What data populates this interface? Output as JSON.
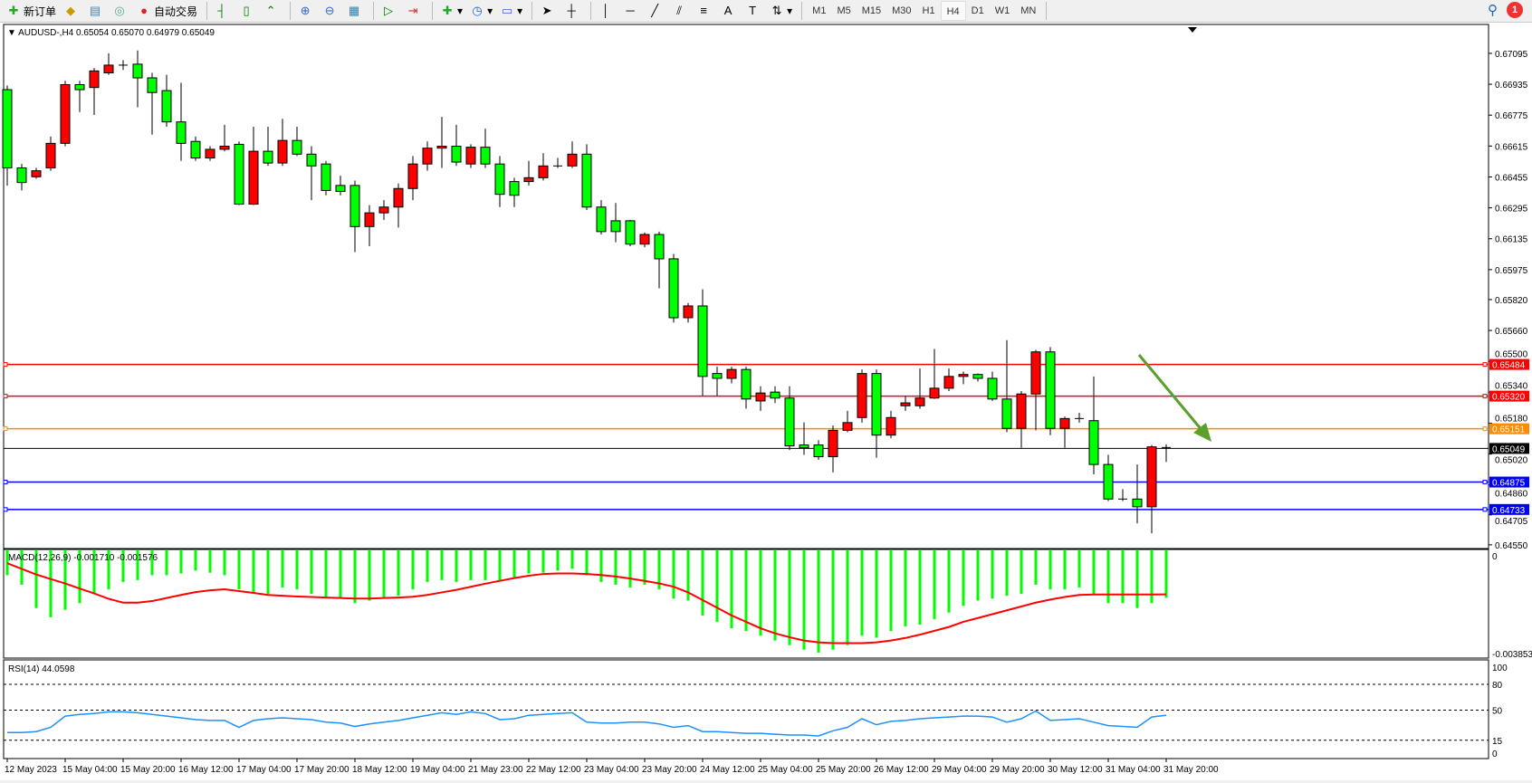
{
  "toolbar": {
    "new_order": "新订单",
    "auto_trading": "自动交易",
    "timeframes": [
      "M1",
      "M5",
      "M15",
      "M30",
      "H1",
      "H4",
      "D1",
      "W1",
      "MN"
    ],
    "active_timeframe": "H4",
    "notification_count": "1"
  },
  "header": {
    "symbol": "AUDUSD-,H4",
    "ohlc": "0.65054 0.65070 0.64979 0.65049"
  },
  "colors": {
    "bull": "#ff0000",
    "bear": "#00ff00",
    "macd_hist": "#00ff00",
    "macd_signal": "#ff0000",
    "rsi": "#1e90ff",
    "arrow": "#5aa02c"
  },
  "levels": [
    {
      "price": "0.65484",
      "color": "#ff0000"
    },
    {
      "price": "0.65320",
      "color": "#ff0000"
    },
    {
      "price": "0.65151",
      "color": "#ff8c00"
    },
    {
      "price": "0.65049",
      "color": "#000000"
    },
    {
      "price": "0.64875",
      "color": "#0000ff"
    },
    {
      "price": "0.64733",
      "color": "#0000ff"
    }
  ],
  "chart_data": [
    {
      "type": "candlestick",
      "title": "AUDUSD-,H4",
      "ylim": [
        0.6454,
        0.6724
      ],
      "y_ticks": [
        "0.67095",
        "0.66935",
        "0.66775",
        "0.66615",
        "0.66455",
        "0.66295",
        "0.66135",
        "0.65975",
        "0.65820",
        "0.65660",
        "0.65500",
        "0.65340",
        "0.65180",
        "0.65020",
        "0.64860",
        "0.64705",
        "0.64550"
      ],
      "x_ticks": [
        "12 May 2023",
        "15 May 04:00",
        "15 May 20:00",
        "16 May 12:00",
        "17 May 04:00",
        "17 May 20:00",
        "18 May 12:00",
        "19 May 04:00",
        "21 May 23:00",
        "22 May 12:00",
        "23 May 04:00",
        "23 May 20:00",
        "24 May 12:00",
        "25 May 04:00",
        "25 May 20:00",
        "26 May 12:00",
        "29 May 04:00",
        "29 May 20:00",
        "30 May 12:00",
        "31 May 04:00",
        "31 May 20:00"
      ],
      "ohlc": [
        [
          0.66907,
          0.66928,
          0.6641,
          0.66502
        ],
        [
          0.66502,
          0.66522,
          0.66385,
          0.66426
        ],
        [
          0.66456,
          0.66502,
          0.66446,
          0.66487
        ],
        [
          0.66502,
          0.66664,
          0.66487,
          0.66629
        ],
        [
          0.66629,
          0.66953,
          0.66614,
          0.66933
        ],
        [
          0.66933,
          0.66953,
          0.66791,
          0.66907
        ],
        [
          0.66918,
          0.67019,
          0.66776,
          0.67004
        ],
        [
          0.66994,
          0.67095,
          0.66984,
          0.67034
        ],
        [
          0.67034,
          0.6706,
          0.67009,
          0.67034
        ],
        [
          0.67039,
          0.6711,
          0.66816,
          0.66968
        ],
        [
          0.66968,
          0.66994,
          0.66674,
          0.66892
        ],
        [
          0.66902,
          0.66984,
          0.66715,
          0.6674
        ],
        [
          0.6674,
          0.66943,
          0.66538,
          0.66629
        ],
        [
          0.66639,
          0.66664,
          0.66538,
          0.66553
        ],
        [
          0.66553,
          0.66614,
          0.66538,
          0.66598
        ],
        [
          0.66598,
          0.66725,
          0.66588,
          0.66614
        ],
        [
          0.66624,
          0.66639,
          0.66309,
          0.66314
        ],
        [
          0.66314,
          0.66715,
          0.66309,
          0.66588
        ],
        [
          0.66588,
          0.66715,
          0.66512,
          0.66527
        ],
        [
          0.66527,
          0.66756,
          0.66512,
          0.66644
        ],
        [
          0.66644,
          0.66715,
          0.66563,
          0.66573
        ],
        [
          0.66573,
          0.66614,
          0.66335,
          0.66512
        ],
        [
          0.66522,
          0.66538,
          0.6636,
          0.66385
        ],
        [
          0.66411,
          0.66461,
          0.6636,
          0.6638
        ],
        [
          0.66411,
          0.66436,
          0.66066,
          0.66198
        ],
        [
          0.66198,
          0.66309,
          0.66096,
          0.66269
        ],
        [
          0.66269,
          0.66335,
          0.66233,
          0.66299
        ],
        [
          0.66299,
          0.66421,
          0.66193,
          0.66395
        ],
        [
          0.66395,
          0.66563,
          0.66335,
          0.66522
        ],
        [
          0.66522,
          0.66639,
          0.66487,
          0.66604
        ],
        [
          0.66604,
          0.66766,
          0.66502,
          0.66614
        ],
        [
          0.66614,
          0.66725,
          0.66512,
          0.66532
        ],
        [
          0.66522,
          0.66624,
          0.66502,
          0.66609
        ],
        [
          0.66609,
          0.66705,
          0.66502,
          0.66522
        ],
        [
          0.66522,
          0.66563,
          0.66299,
          0.66365
        ],
        [
          0.66431,
          0.66451,
          0.66299,
          0.6636
        ],
        [
          0.66431,
          0.66538,
          0.66411,
          0.66451
        ],
        [
          0.66451,
          0.66578,
          0.66436,
          0.66512
        ],
        [
          0.66512,
          0.66553,
          0.66502,
          0.66512
        ],
        [
          0.66512,
          0.66639,
          0.66502,
          0.66573
        ],
        [
          0.66573,
          0.66624,
          0.66284,
          0.66299
        ],
        [
          0.66299,
          0.66335,
          0.66157,
          0.66172
        ],
        [
          0.66228,
          0.6632,
          0.66117,
          0.66172
        ],
        [
          0.66228,
          0.66233,
          0.66096,
          0.66107
        ],
        [
          0.66107,
          0.66167,
          0.66091,
          0.66157
        ],
        [
          0.66157,
          0.66172,
          0.65878,
          0.66031
        ],
        [
          0.66031,
          0.66056,
          0.65701,
          0.65726
        ],
        [
          0.65726,
          0.65802,
          0.65701,
          0.65787
        ],
        [
          0.65787,
          0.65873,
          0.65321,
          0.65422
        ],
        [
          0.65437,
          0.65472,
          0.65321,
          0.65412
        ],
        [
          0.65412,
          0.65472,
          0.65386,
          0.65458
        ],
        [
          0.65458,
          0.65472,
          0.65255,
          0.65305
        ],
        [
          0.65295,
          0.65371,
          0.65244,
          0.65336
        ],
        [
          0.65341,
          0.65371,
          0.65285,
          0.6531
        ],
        [
          0.6531,
          0.65371,
          0.65041,
          0.65062
        ],
        [
          0.65067,
          0.65184,
          0.65016,
          0.65052
        ],
        [
          0.65067,
          0.65092,
          0.6499,
          0.65006
        ],
        [
          0.65006,
          0.65168,
          0.64925,
          0.65143
        ],
        [
          0.65143,
          0.65244,
          0.65133,
          0.65183
        ],
        [
          0.65209,
          0.65458,
          0.65183,
          0.65437
        ],
        [
          0.65437,
          0.65458,
          0.65001,
          0.65118
        ],
        [
          0.65118,
          0.65244,
          0.65102,
          0.65209
        ],
        [
          0.6527,
          0.65321,
          0.65244,
          0.65285
        ],
        [
          0.6527,
          0.65463,
          0.65255,
          0.6531
        ],
        [
          0.6531,
          0.65564,
          0.65305,
          0.65361
        ],
        [
          0.65361,
          0.65463,
          0.65346,
          0.65422
        ],
        [
          0.65422,
          0.65447,
          0.65382,
          0.65432
        ],
        [
          0.65432,
          0.65437,
          0.65396,
          0.65412
        ],
        [
          0.65412,
          0.65447,
          0.65295,
          0.65305
        ],
        [
          0.65305,
          0.6561,
          0.65133,
          0.65153
        ],
        [
          0.65153,
          0.65346,
          0.65052,
          0.65331
        ],
        [
          0.65331,
          0.65559,
          0.65143,
          0.65549
        ],
        [
          0.65549,
          0.65574,
          0.65118,
          0.65153
        ],
        [
          0.65153,
          0.65214,
          0.65052,
          0.65204
        ],
        [
          0.65204,
          0.65234,
          0.65183,
          0.65204
        ],
        [
          0.65193,
          0.65422,
          0.64915,
          0.64966
        ],
        [
          0.64966,
          0.65016,
          0.64777,
          0.64787
        ],
        [
          0.64787,
          0.64838,
          0.64777,
          0.64787
        ],
        [
          0.64787,
          0.64966,
          0.64661,
          0.64747
        ],
        [
          0.64747,
          0.65067,
          0.6461,
          0.65057
        ],
        [
          0.65054,
          0.6507,
          0.64979,
          0.65049
        ]
      ]
    },
    {
      "type": "bar+line",
      "title": "MACD(12,26,9) -0.001710 -0.001576",
      "ylim": [
        -0.003853,
        0
      ],
      "y_ticks": [
        "0",
        "-0.003853"
      ],
      "histogram": [
        -0.00083,
        -0.0012,
        -0.00211,
        -0.00247,
        -0.00218,
        -0.00192,
        -0.00156,
        -0.00138,
        -0.00109,
        -0.00102,
        -0.00083,
        -0.00083,
        -0.00076,
        -0.00065,
        -0.00073,
        -0.00083,
        -0.00138,
        -0.00156,
        -0.00156,
        -0.00131,
        -0.00138,
        -0.00156,
        -0.00167,
        -0.00174,
        -0.00192,
        -0.00182,
        -0.00174,
        -0.00163,
        -0.00138,
        -0.00109,
        -0.00102,
        -0.00109,
        -0.00102,
        -0.00102,
        -0.00102,
        -0.00091,
        -0.00076,
        -0.00073,
        -0.00065,
        -0.00058,
        -0.00083,
        -0.00109,
        -0.0012,
        -0.00131,
        -0.0012,
        -0.00138,
        -0.00174,
        -0.00182,
        -0.0024,
        -0.00265,
        -0.0029,
        -0.00301,
        -0.00319,
        -0.00338,
        -0.00356,
        -0.00374,
        -0.00385,
        -0.00374,
        -0.00356,
        -0.00319,
        -0.00327,
        -0.00301,
        -0.00283,
        -0.00276,
        -0.00254,
        -0.00229,
        -0.00203,
        -0.00182,
        -0.00174,
        -0.00163,
        -0.00156,
        -0.0012,
        -0.00138,
        -0.00138,
        -0.00131,
        -0.00156,
        -0.00192,
        -0.00192,
        -0.00211,
        -0.00192,
        -0.00171
      ],
      "signal": [
        -0.00036,
        -0.00058,
        -0.0008,
        -0.00098,
        -0.00115,
        -0.00135,
        -0.00154,
        -0.00175,
        -0.0019,
        -0.0019,
        -0.00184,
        -0.00172,
        -0.0016,
        -0.00149,
        -0.00142,
        -0.00138,
        -0.00145,
        -0.00152,
        -0.0016,
        -0.00163,
        -0.00166,
        -0.00168,
        -0.0017,
        -0.00172,
        -0.00174,
        -0.00174,
        -0.00172,
        -0.0017,
        -0.00167,
        -0.0016,
        -0.0015,
        -0.0014,
        -0.00128,
        -0.00116,
        -0.00105,
        -0.00094,
        -0.00085,
        -0.00078,
        -0.00076,
        -0.00076,
        -0.00078,
        -0.00082,
        -0.00088,
        -0.00096,
        -0.00105,
        -0.00115,
        -0.00128,
        -0.0015,
        -0.0018,
        -0.0021,
        -0.0024,
        -0.00265,
        -0.0029,
        -0.0031,
        -0.00325,
        -0.00338,
        -0.00345,
        -0.00348,
        -0.00348,
        -0.00348,
        -0.00345,
        -0.00338,
        -0.00328,
        -0.00315,
        -0.003,
        -0.00285,
        -0.00265,
        -0.0025,
        -0.00235,
        -0.0022,
        -0.00205,
        -0.0019,
        -0.00178,
        -0.00168,
        -0.0016,
        -0.00158,
        -0.00158,
        -0.00158,
        -0.00158,
        -0.00158,
        -0.001576
      ]
    },
    {
      "type": "line",
      "title": "RSI(14) 44.0598",
      "ylim": [
        0,
        100
      ],
      "y_ticks": [
        "100",
        "80",
        "50",
        "15",
        "0"
      ],
      "levels": [
        80,
        50,
        15
      ],
      "values": [
        24,
        24,
        25,
        30,
        43,
        45,
        46,
        48,
        48,
        47,
        45,
        43,
        41,
        39,
        38,
        38,
        30,
        38,
        40,
        41,
        40,
        39,
        36,
        35,
        31,
        34,
        36,
        38,
        41,
        44,
        47,
        45,
        48,
        46,
        39,
        40,
        44,
        45,
        46,
        47,
        36,
        35,
        35,
        36,
        36,
        34,
        30,
        32,
        25,
        25,
        24,
        23,
        23,
        22,
        21,
        21,
        20,
        26,
        30,
        40,
        33,
        37,
        38,
        40,
        41,
        42,
        43,
        43,
        42,
        36,
        40,
        49,
        38,
        39,
        40,
        36,
        32,
        31,
        30,
        42,
        44.06
      ]
    }
  ]
}
